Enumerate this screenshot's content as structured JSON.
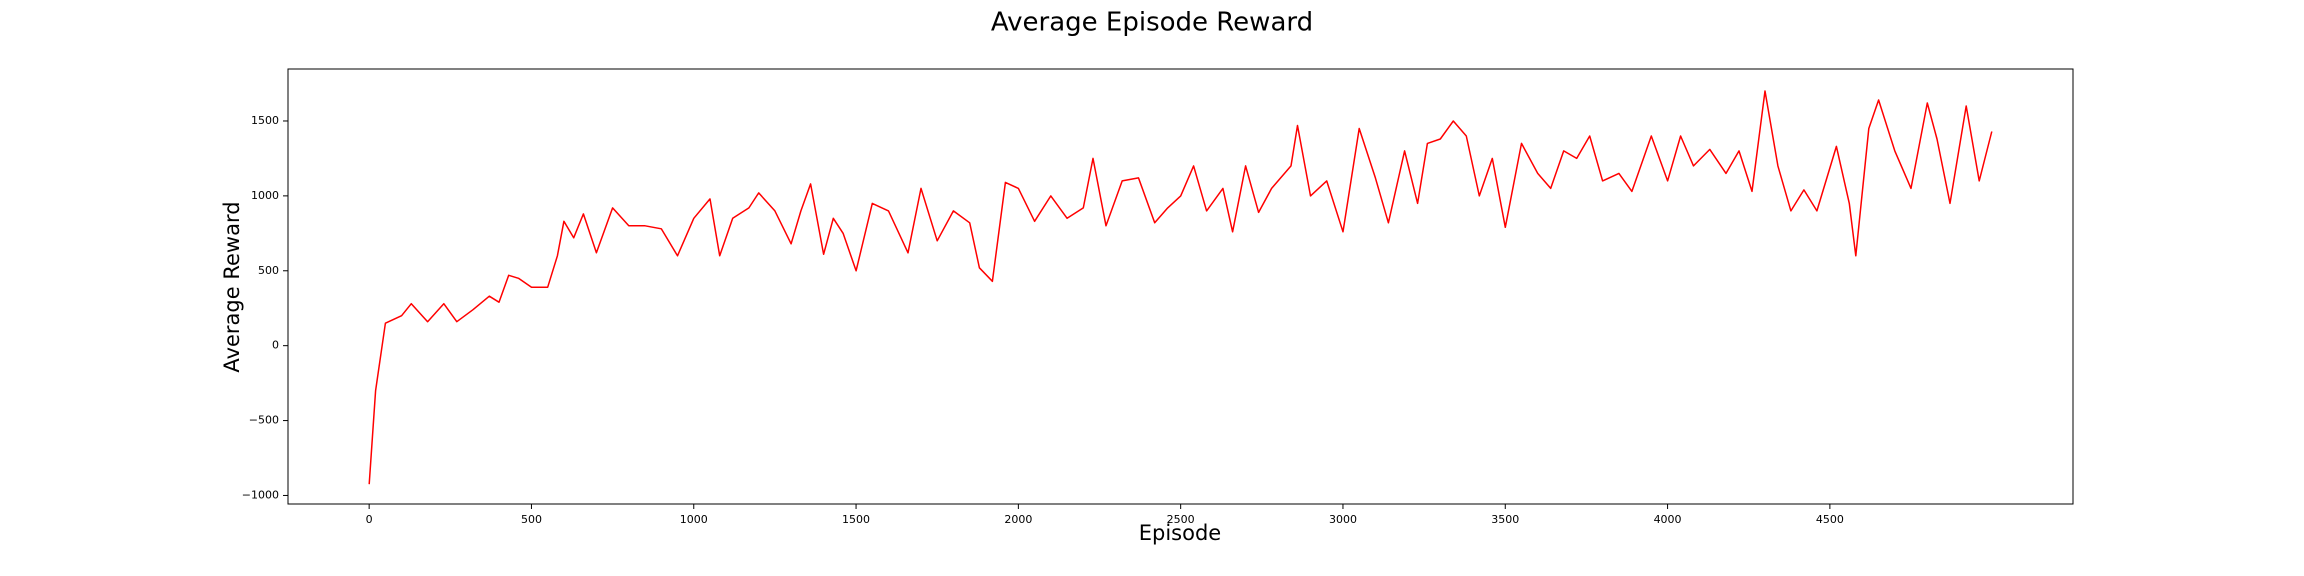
{
  "chart_data": {
    "type": "line",
    "title": "Average Episode Reward",
    "xlabel": "Episode",
    "ylabel": "Average Reward",
    "x": [
      0,
      20,
      50,
      100,
      130,
      180,
      230,
      270,
      320,
      370,
      400,
      430,
      460,
      500,
      550,
      580,
      600,
      630,
      660,
      700,
      750,
      800,
      850,
      900,
      950,
      1000,
      1050,
      1080,
      1120,
      1170,
      1200,
      1250,
      1300,
      1330,
      1360,
      1400,
      1430,
      1460,
      1500,
      1550,
      1600,
      1660,
      1700,
      1750,
      1800,
      1850,
      1880,
      1920,
      1960,
      2000,
      2050,
      2100,
      2150,
      2200,
      2230,
      2270,
      2320,
      2370,
      2420,
      2460,
      2500,
      2540,
      2580,
      2630,
      2660,
      2700,
      2740,
      2780,
      2840,
      2860,
      2900,
      2950,
      3000,
      3050,
      3100,
      3140,
      3190,
      3230,
      3260,
      3300,
      3340,
      3380,
      3420,
      3460,
      3500,
      3550,
      3600,
      3640,
      3680,
      3720,
      3760,
      3800,
      3850,
      3890,
      3950,
      4000,
      4040,
      4080,
      4130,
      4180,
      4220,
      4260,
      4300,
      4340,
      4380,
      4420,
      4460,
      4520,
      4560,
      4580,
      4620,
      4650,
      4700,
      4750,
      4800,
      4830,
      4870,
      4920,
      4960,
      4999
    ],
    "series": [
      {
        "name": "Average Reward",
        "color": "#ff0000",
        "values": [
          -925,
          -300,
          150,
          200,
          280,
          160,
          280,
          160,
          240,
          330,
          290,
          470,
          450,
          390,
          390,
          600,
          830,
          720,
          880,
          620,
          920,
          800,
          800,
          780,
          600,
          850,
          980,
          600,
          850,
          920,
          1020,
          900,
          680,
          900,
          1080,
          610,
          850,
          750,
          500,
          950,
          900,
          620,
          1050,
          700,
          900,
          820,
          520,
          430,
          1090,
          1050,
          830,
          1000,
          850,
          920,
          1250,
          800,
          1100,
          1120,
          820,
          920,
          1000,
          1200,
          900,
          1050,
          760,
          1200,
          890,
          1050,
          1200,
          1470,
          1000,
          1100,
          760,
          1450,
          1120,
          820,
          1300,
          950,
          1350,
          1380,
          1500,
          1400,
          1000,
          1250,
          790,
          1350,
          1150,
          1050,
          1300,
          1250,
          1400,
          1100,
          1150,
          1030,
          1400,
          1100,
          1400,
          1200,
          1310,
          1150,
          1300,
          1030,
          1700,
          1200,
          900,
          1040,
          900,
          1330,
          950,
          600,
          1450,
          1640,
          1300,
          1050,
          1620,
          1380,
          950,
          1600,
          1100,
          1430
        ]
      }
    ],
    "xlim": [
      -250,
      5249
    ],
    "ylim": [
      -1057,
      1847
    ],
    "xticks": [
      0,
      500,
      1000,
      1500,
      2000,
      2500,
      3000,
      3500,
      4000,
      4500
    ],
    "yticks": [
      {
        "value": -1000,
        "label": "−1000"
      },
      {
        "value": -500,
        "label": "−500"
      },
      0,
      500,
      1000,
      1500
    ],
    "grid": false
  }
}
